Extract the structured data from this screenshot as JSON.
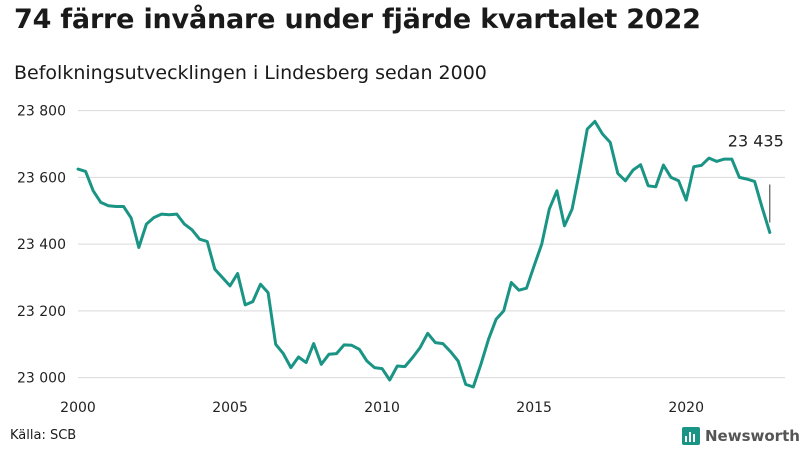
{
  "header": {
    "title": "74 färre invånare under fjärde kvartalet 2022",
    "subtitle": "Befolkningsutvecklingen i Lindesberg sedan 2000"
  },
  "footer": {
    "source": "Källa: SCB",
    "brand": "Newsworthy"
  },
  "colors": {
    "line": "#1a9484",
    "grid": "#d9d9d9",
    "brand_icon": "#1a9484"
  },
  "chart_data": {
    "type": "line",
    "title": "74 färre invånare under fjärde kvartalet 2022",
    "subtitle": "Befolkningsutvecklingen i Lindesberg sedan 2000",
    "xlabel": "",
    "ylabel": "",
    "xlim": [
      2000,
      2023.25
    ],
    "ylim": [
      22960,
      23820
    ],
    "x_ticks": [
      2000,
      2005,
      2010,
      2015,
      2020
    ],
    "x_tick_labels": [
      "2000",
      "2005",
      "2010",
      "2015",
      "2020"
    ],
    "y_ticks": [
      23000,
      23200,
      23400,
      23600,
      23800
    ],
    "y_tick_labels": [
      "23 000",
      "23 200",
      "23 400",
      "23 600",
      "23 800"
    ],
    "grid": "horizontal",
    "annotation": {
      "x": 2022.75,
      "y": 23435,
      "text": "23 435"
    },
    "series": [
      {
        "x_start": 2000.0,
        "x_step": 0.25,
        "values": [
          23625,
          23618,
          23560,
          23525,
          23515,
          23513,
          23513,
          23478,
          23390,
          23460,
          23480,
          23490,
          23488,
          23490,
          23460,
          23443,
          23415,
          23408,
          23325,
          23300,
          23275,
          23312,
          23218,
          23228,
          23280,
          23255,
          23100,
          23072,
          23030,
          23062,
          23045,
          23102,
          23040,
          23070,
          23072,
          23098,
          23097,
          23085,
          23050,
          23030,
          23027,
          22993,
          23035,
          23033,
          23060,
          23090,
          23133,
          23105,
          23102,
          23078,
          23050,
          22980,
          22972,
          23040,
          23115,
          23175,
          23200,
          23285,
          23262,
          23268,
          23335,
          23400,
          23505,
          23560,
          23455,
          23505,
          23620,
          23745,
          23768,
          23730,
          23705,
          23612,
          23590,
          23622,
          23638,
          23575,
          23572,
          23637,
          23600,
          23590,
          23532,
          23632,
          23636,
          23658,
          23648,
          23655,
          23655,
          23600,
          23595,
          23588,
          23509,
          23435
        ]
      }
    ]
  }
}
